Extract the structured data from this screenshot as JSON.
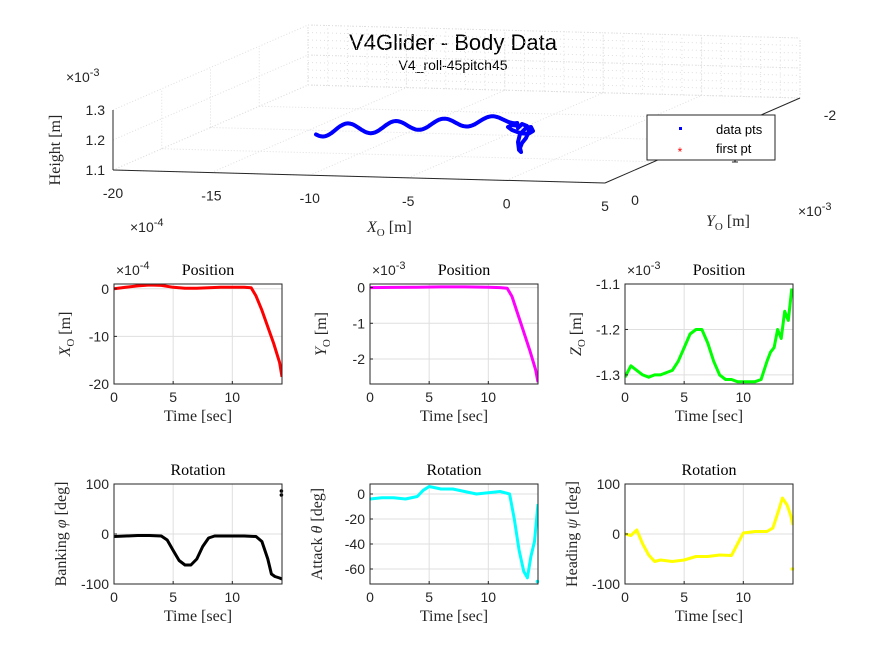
{
  "figure": {
    "title": "V4Glider - Body Data",
    "subtitle": "V4_roll-45pitch45"
  },
  "chart_data": [
    {
      "id": "body-3d",
      "type": "scatter",
      "projection": "3d",
      "title": "V4Glider - Body Data",
      "subtitle": "V4_roll-45pitch45",
      "xlabel": "X_O [m]",
      "ylabel": "Y_O [m]",
      "zlabel": "Height [m]",
      "x_multiplier": "×10^-4",
      "y_multiplier": "×10^-3",
      "z_multiplier": "×10^-3",
      "xlim": [
        -20,
        5
      ],
      "ylim": [
        0,
        -2
      ],
      "zlim": [
        1.1,
        1.3
      ],
      "x_ticks": [
        "-20",
        "-15",
        "-10",
        "-5",
        "0",
        "5"
      ],
      "y_ticks": [
        "0",
        "-1",
        "-2"
      ],
      "z_ticks": [
        "1.1",
        "1.2",
        "1.3"
      ],
      "grid": true,
      "legend": {
        "position": "top-right",
        "entries": [
          "data pts",
          "first pt"
        ]
      },
      "series": [
        {
          "name": "data pts",
          "color": "#0000ff",
          "marker": "point"
        },
        {
          "name": "first pt",
          "color": "#ff0000",
          "marker": "asterisk"
        }
      ]
    },
    {
      "id": "pos-x",
      "type": "line",
      "title": "Position",
      "multiplier": "×10^-4",
      "xlabel": "Time [sec]",
      "ylabel": "X_O [m]",
      "xlim": [
        0,
        14.2
      ],
      "ylim": [
        -20,
        1
      ],
      "x_ticks": [
        0,
        5,
        10
      ],
      "y_ticks": [
        0,
        -10,
        -20
      ],
      "color": "#ff0000",
      "x": [
        0,
        1,
        2,
        3,
        4,
        5,
        6,
        7,
        8,
        9,
        10,
        11,
        11.6,
        12,
        12.5,
        13,
        13.5,
        14,
        14.2
      ],
      "y": [
        0,
        0.3,
        0.6,
        0.8,
        0.7,
        0.3,
        0.1,
        0.1,
        0.2,
        0.3,
        0.3,
        0.3,
        0.2,
        -1.5,
        -4.5,
        -8,
        -11.5,
        -15.5,
        -18.5
      ]
    },
    {
      "id": "pos-y",
      "type": "line",
      "title": "Position",
      "multiplier": "×10^-3",
      "xlabel": "Time [sec]",
      "ylabel": "Y_O [m]",
      "xlim": [
        0,
        14.2
      ],
      "ylim": [
        -2.7,
        0.1
      ],
      "x_ticks": [
        0,
        5,
        10
      ],
      "y_ticks": [
        0,
        -1,
        -2
      ],
      "color": "#ff00ff",
      "x": [
        0,
        2,
        4,
        6,
        8,
        10,
        11,
        11.6,
        12,
        12.5,
        13,
        13.5,
        14,
        14.2
      ],
      "y": [
        0,
        0.005,
        0.01,
        0.02,
        0.02,
        0.01,
        0.0,
        -0.02,
        -0.25,
        -0.75,
        -1.25,
        -1.75,
        -2.3,
        -2.65
      ]
    },
    {
      "id": "pos-z",
      "type": "line",
      "title": "Position",
      "multiplier": "×10^-3",
      "xlabel": "Time [sec]",
      "ylabel": "Z_O [m]",
      "xlim": [
        0,
        14.2
      ],
      "ylim": [
        -1.32,
        -1.1
      ],
      "x_ticks": [
        0,
        5,
        10
      ],
      "y_ticks": [
        -1.1,
        -1.2,
        -1.3
      ],
      "color": "#00ff00",
      "x": [
        0,
        0.5,
        1,
        1.5,
        2,
        2.5,
        3,
        3.5,
        4,
        4.5,
        5,
        5.5,
        6,
        6.5,
        7,
        7.5,
        8,
        8.5,
        9,
        9.5,
        10,
        10.5,
        11,
        11.5,
        12,
        12.3,
        12.6,
        12.9,
        13.2,
        13.5,
        13.8,
        14.1
      ],
      "y": [
        -1.305,
        -1.28,
        -1.29,
        -1.3,
        -1.305,
        -1.3,
        -1.3,
        -1.295,
        -1.29,
        -1.27,
        -1.24,
        -1.21,
        -1.2,
        -1.2,
        -1.23,
        -1.27,
        -1.3,
        -1.31,
        -1.31,
        -1.315,
        -1.315,
        -1.315,
        -1.315,
        -1.31,
        -1.27,
        -1.25,
        -1.24,
        -1.2,
        -1.22,
        -1.16,
        -1.18,
        -1.11
      ]
    },
    {
      "id": "rot-bank",
      "type": "line",
      "title": "Rotation",
      "xlabel": "Time [sec]",
      "ylabel": "Banking φ [deg]",
      "xlim": [
        0,
        14.2
      ],
      "ylim": [
        -100,
        100
      ],
      "x_ticks": [
        0,
        5,
        10
      ],
      "y_ticks": [
        100,
        0,
        -100
      ],
      "color": "#000000",
      "x": [
        0,
        1,
        2,
        3,
        4,
        4.5,
        5,
        5.5,
        6,
        6.5,
        7,
        7.5,
        8,
        8.5,
        9,
        10,
        11,
        12,
        12.5,
        13,
        13.3,
        13.6,
        14,
        14.2
      ],
      "y": [
        -5,
        -4,
        -3,
        -3,
        -4,
        -12,
        -33,
        -53,
        -62,
        -62,
        -50,
        -25,
        -8,
        -4,
        -4,
        -4,
        -4,
        -5,
        -15,
        -50,
        -80,
        -85,
        -88,
        -90
      ],
      "outliers": [
        {
          "x": 14.15,
          "y": 78
        },
        {
          "x": 14.15,
          "y": 86
        }
      ]
    },
    {
      "id": "rot-attack",
      "type": "line",
      "title": "Rotation",
      "xlabel": "Time [sec]",
      "ylabel": "Attack θ [deg]",
      "xlim": [
        0,
        14.2
      ],
      "ylim": [
        -72,
        8
      ],
      "x_ticks": [
        0,
        5,
        10
      ],
      "y_ticks": [
        0,
        -20,
        -40,
        -60
      ],
      "color": "#00ffff",
      "x": [
        0,
        1,
        2,
        3,
        4,
        4.5,
        5,
        6,
        7,
        8,
        9,
        10,
        11,
        11.8,
        12.2,
        12.6,
        13,
        13.3,
        13.6,
        13.9,
        14.2
      ],
      "y": [
        -4,
        -3,
        -3,
        -4,
        -2,
        3,
        6,
        4,
        4,
        2,
        0,
        1,
        2,
        0,
        -20,
        -45,
        -62,
        -67,
        -50,
        -38,
        -8
      ],
      "outliers": [
        {
          "x": 14.15,
          "y": -70
        }
      ]
    },
    {
      "id": "rot-heading",
      "type": "line",
      "title": "Rotation",
      "xlabel": "Time [sec]",
      "ylabel": "Heading ψ [deg]",
      "xlim": [
        0,
        14.2
      ],
      "ylim": [
        -100,
        100
      ],
      "x_ticks": [
        0,
        5,
        10
      ],
      "y_ticks": [
        100,
        0,
        -100
      ],
      "color": "#ffff00",
      "x": [
        0,
        0.5,
        1,
        1.5,
        2,
        2.5,
        3,
        4,
        5,
        6,
        7,
        8,
        9,
        10,
        11,
        12,
        12.5,
        13,
        13.3,
        13.7,
        14,
        14.2
      ],
      "y": [
        0,
        -3,
        8,
        -20,
        -42,
        -55,
        -52,
        -55,
        -52,
        -45,
        -45,
        -42,
        -43,
        2,
        5,
        5,
        12,
        48,
        72,
        58,
        38,
        18
      ],
      "outliers": [
        {
          "x": 14.15,
          "y": -70
        }
      ]
    }
  ]
}
